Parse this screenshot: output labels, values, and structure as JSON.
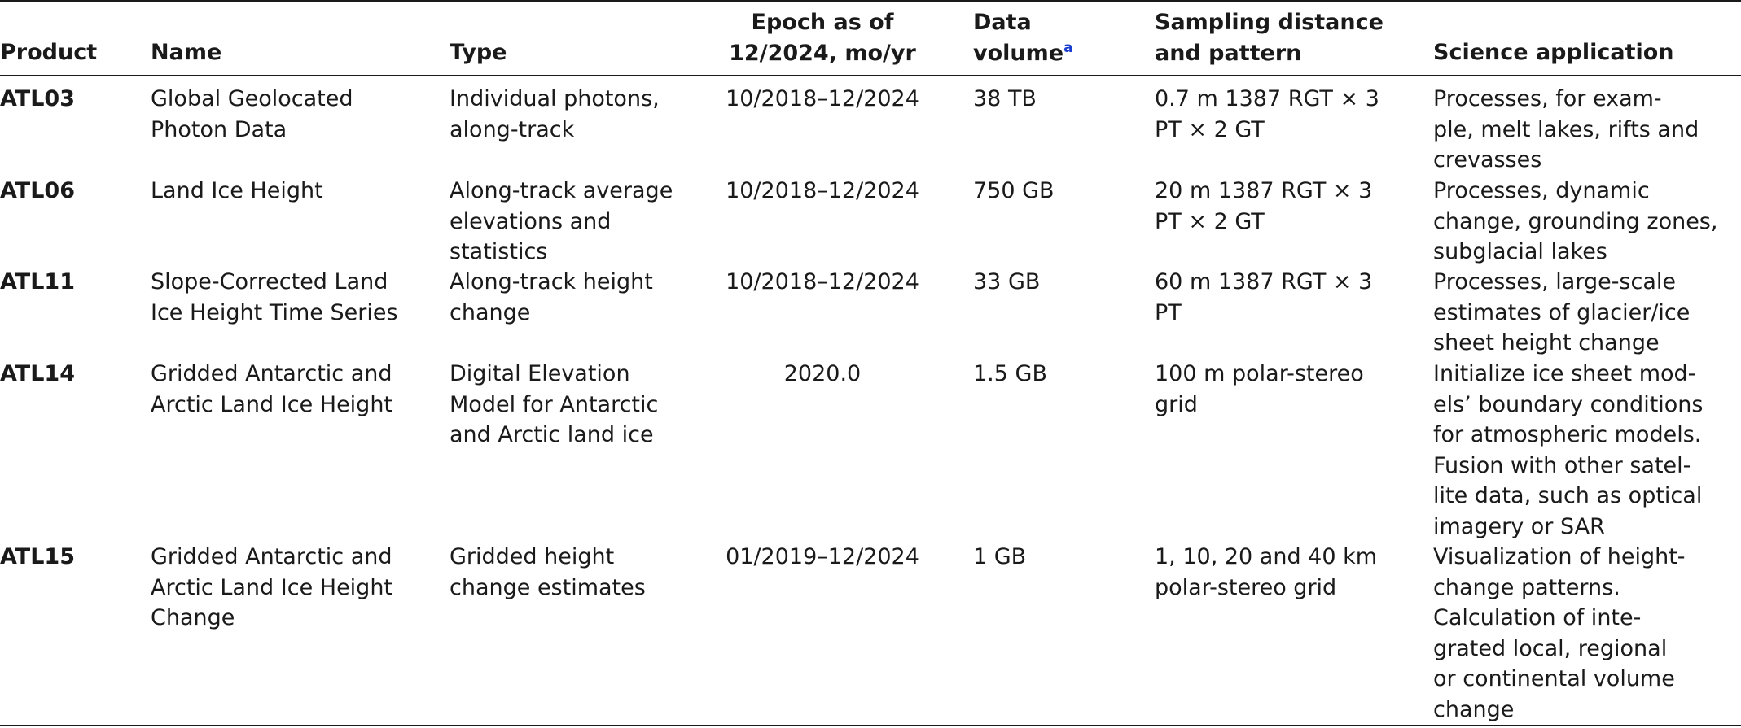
{
  "headers": {
    "product": "Product",
    "name": "Name",
    "type": "Type",
    "epoch": "Epoch as of\n12/2024, mo/yr",
    "data_volume": "Data\nvolume",
    "data_volume_note": "a",
    "sampling": "Sampling distance\nand pattern",
    "science": "Science application"
  },
  "rows": [
    {
      "product": "ATL03",
      "name": "Global Geolocated\nPhoton Data",
      "type": "Individual photons,\nalong-track",
      "epoch": "10/2018–12/2024",
      "volume": "38 TB",
      "sampling": "0.7 m 1387 RGT × 3\nPT × 2 GT",
      "science": "Processes, for exam-\nple, melt lakes, rifts and\ncrevasses"
    },
    {
      "product": "ATL06",
      "name": "Land Ice Height",
      "type": "Along-track average\nelevations and\nstatistics",
      "epoch": "10/2018–12/2024",
      "volume": "750 GB",
      "sampling": "20 m 1387 RGT × 3\nPT × 2 GT",
      "science": "Processes, dynamic\nchange, grounding zones,\nsubglacial lakes"
    },
    {
      "product": "ATL11",
      "name": "Slope-Corrected Land\nIce Height Time Series",
      "type": "Along-track height\nchange",
      "epoch": "10/2018–12/2024",
      "volume": "33 GB",
      "sampling": "60 m 1387 RGT × 3\nPT",
      "science": "Processes, large-scale\nestimates of glacier/ice\nsheet height change"
    },
    {
      "product": "ATL14",
      "name": "Gridded Antarctic and\nArctic Land Ice Height",
      "type": "Digital Elevation\nModel for Antarctic\nand Arctic land ice",
      "epoch": "2020.0",
      "volume": "1.5 GB",
      "sampling": "100 m polar-stereo\ngrid",
      "science": "Initialize ice sheet mod-\nels’ boundary conditions\nfor atmospheric models.\nFusion with other satel-\nlite data, such as optical\nimagery or SAR"
    },
    {
      "product": "ATL15",
      "name": "Gridded Antarctic and\nArctic Land Ice Height\nChange",
      "type": "Gridded height\nchange estimates",
      "epoch": "01/2019–12/2024",
      "volume": "1 GB",
      "sampling": "1, 10, 20 and 40 km\npolar-stereo grid",
      "science": "Visualization of height-\nchange patterns.\nCalculation of inte-\ngrated local, regional\nor continental volume\nchange"
    }
  ]
}
